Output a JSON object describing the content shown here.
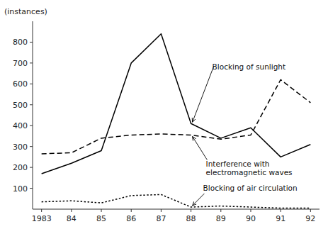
{
  "chart_data": {
    "type": "line",
    "y_label": "(instances)",
    "categories": [
      "1983",
      "84",
      "85",
      "86",
      "87",
      "88",
      "89",
      "90",
      "91",
      "92"
    ],
    "series": [
      {
        "color": "#000000",
        "line_style": "solid",
        "values": [
          170,
          220,
          280,
          700,
          840,
          410,
          340,
          390,
          250,
          310
        ]
      },
      {
        "color": "#000000",
        "line_style": "dashed",
        "values": [
          265,
          270,
          340,
          355,
          360,
          355,
          335,
          355,
          620,
          510
        ]
      },
      {
        "color": "#000000",
        "line_style": "dotted",
        "values": [
          35,
          40,
          30,
          65,
          70,
          10,
          15,
          10,
          5,
          5
        ]
      }
    ],
    "annotations": [
      {
        "text": "Blocking of sunlight"
      },
      {
        "text": "Interference with\nelectromagnetic waves"
      },
      {
        "text": "Blocking of air circulation"
      }
    ],
    "ylim": [
      0,
      900
    ],
    "yticks": [
      100,
      200,
      300,
      400,
      500,
      600,
      700,
      800
    ],
    "grid": false
  }
}
